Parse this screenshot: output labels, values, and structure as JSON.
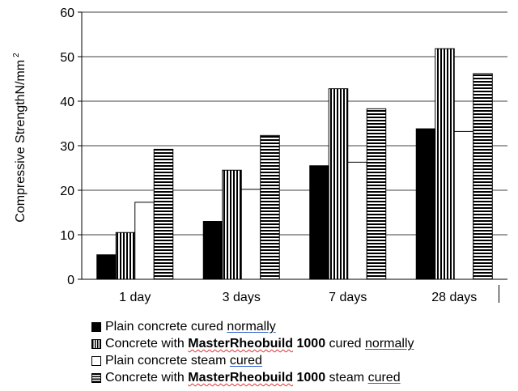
{
  "chart_data": {
    "type": "bar",
    "title": "",
    "xlabel": "",
    "ylabel": "Compressive StrengthN/mm",
    "ylabel_superscript": "2",
    "ylim": [
      0,
      60
    ],
    "yticks": [
      "0",
      "10",
      "20",
      "30",
      "40",
      "50",
      "60"
    ],
    "grid": true,
    "legend_position": "bottom",
    "categories": [
      "1 day",
      "3 days",
      "7 days",
      "28 days"
    ],
    "series": [
      {
        "name": "Plain concrete cured normally",
        "values": [
          5.5,
          13,
          25.5,
          33.8
        ],
        "pattern": "solid-black"
      },
      {
        "name": "Concrete with MasterRheobuild 1000 cured normally",
        "values": [
          10.5,
          24.5,
          42.8,
          51.8
        ],
        "pattern": "vertical-stripes"
      },
      {
        "name": "Plain concrete steam cured",
        "values": [
          17.3,
          20.2,
          26.3,
          33.2
        ],
        "pattern": "white"
      },
      {
        "name": "Concrete with MasterRheobuild 1000 steam cured",
        "values": [
          29.2,
          32.3,
          38.3,
          46.2
        ],
        "pattern": "horizontal-stripes"
      }
    ]
  },
  "legend": [
    {
      "parts": [
        {
          "text": "Plain concrete cured "
        },
        {
          "text": "normally",
          "style": "link"
        }
      ]
    },
    {
      "parts": [
        {
          "text": "Concrete with "
        },
        {
          "text": "MasterRheobuild",
          "style": "bold-spell"
        },
        {
          "text": " 1000",
          "style": "bold"
        },
        {
          "text": " cured "
        },
        {
          "text": "normally",
          "style": "link"
        }
      ]
    },
    {
      "parts": [
        {
          "text": "Plain concrete steam "
        },
        {
          "text": "cured",
          "style": "link"
        }
      ]
    },
    {
      "parts": [
        {
          "text": "Concrete with "
        },
        {
          "text": "MasterRheobuild",
          "style": "bold-spell"
        },
        {
          "text": " 1000",
          "style": "bold"
        },
        {
          "text": " steam "
        },
        {
          "text": "cured",
          "style": "link"
        }
      ]
    }
  ]
}
